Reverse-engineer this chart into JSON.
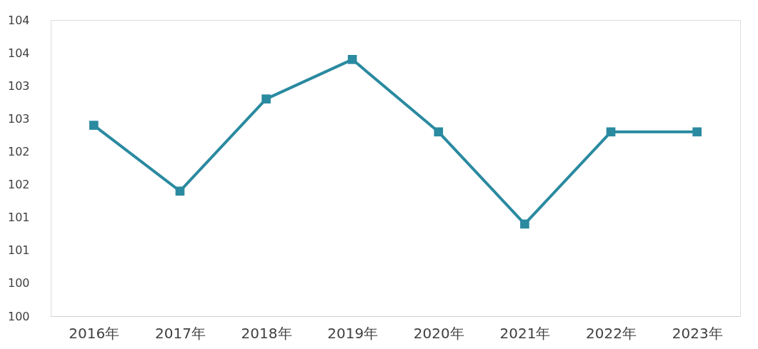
{
  "chart_data": {
    "type": "line",
    "categories": [
      "2016年",
      "2017年",
      "2018年",
      "2019年",
      "2020年",
      "2021年",
      "2022年",
      "2023年"
    ],
    "series": [
      {
        "color": "#2a8aa0",
        "values": [
          102.4,
          101.4,
          102.8,
          103.4,
          102.3,
          100.9,
          102.3,
          102.3
        ]
      }
    ],
    "ylim": [
      99.5,
      104.0
    ],
    "yticks": [
      {
        "value": 99.5,
        "label": "100"
      },
      100,
      {
        "value": 100.5,
        "label": "101"
      },
      101,
      {
        "value": 101.5,
        "label": "102"
      },
      102,
      {
        "value": 102.5,
        "label": "103"
      },
      103,
      {
        "value": 103.5,
        "label": "104"
      },
      104
    ],
    "marker": "square",
    "line_style": "solid",
    "grid": false
  }
}
